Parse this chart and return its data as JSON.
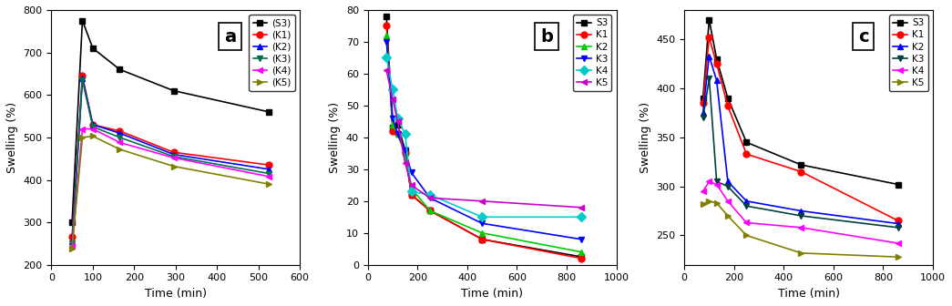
{
  "panel_a": {
    "title": "a",
    "xlabel": "Time (min)",
    "ylabel": "Swelling (%)",
    "xlim": [
      0,
      600
    ],
    "ylim": [
      200,
      800
    ],
    "xticks": [
      0,
      100,
      200,
      300,
      400,
      500,
      600
    ],
    "yticks": [
      200,
      300,
      400,
      500,
      600,
      700,
      800
    ],
    "series": {
      "S3": {
        "x": [
          50,
          75,
          100,
          165,
          295,
          525
        ],
        "y": [
          300,
          775,
          710,
          660,
          610,
          560
        ],
        "color": "#000000",
        "marker": "s",
        "linestyle": "-"
      },
      "K1": {
        "x": [
          50,
          75,
          100,
          165,
          295,
          525
        ],
        "y": [
          265,
          645,
          530,
          515,
          465,
          435
        ],
        "color": "#ff0000",
        "marker": "o",
        "linestyle": "-"
      },
      "K2": {
        "x": [
          50,
          75,
          100,
          165,
          295,
          525
        ],
        "y": [
          255,
          640,
          530,
          510,
          460,
          425
        ],
        "color": "#0000ff",
        "marker": "^",
        "linestyle": "-"
      },
      "K3": {
        "x": [
          50,
          75,
          100,
          165,
          295,
          525
        ],
        "y": [
          250,
          635,
          525,
          500,
          455,
          415
        ],
        "color": "#007050",
        "marker": "v",
        "linestyle": "-"
      },
      "K4": {
        "x": [
          50,
          75,
          100,
          165,
          295,
          525
        ],
        "y": [
          245,
          520,
          520,
          488,
          452,
          408
        ],
        "color": "#ff00ff",
        "marker": "<",
        "linestyle": "-"
      },
      "K5": {
        "x": [
          50,
          75,
          100,
          165,
          295,
          525
        ],
        "y": [
          238,
          500,
          503,
          472,
          432,
          390
        ],
        "color": "#808000",
        "marker": ">",
        "linestyle": "-"
      }
    },
    "legend_labels": [
      "(S3)",
      "(K1)",
      "(K2)",
      "(K3)",
      "(K4)",
      "(K5)"
    ]
  },
  "panel_b": {
    "title": "b",
    "xlabel": "Time (min)",
    "ylabel": "Swelling (%)",
    "xlim": [
      0,
      1000
    ],
    "ylim": [
      0,
      80
    ],
    "xticks": [
      0,
      200,
      400,
      600,
      800,
      1000
    ],
    "yticks": [
      0,
      10,
      20,
      30,
      40,
      50,
      60,
      70,
      80
    ],
    "series": {
      "S3": {
        "x": [
          75,
          100,
          120,
          150,
          175,
          250,
          460,
          860
        ],
        "y": [
          78,
          43,
          44,
          36,
          22,
          17,
          8,
          2.5
        ],
        "color": "#000000",
        "marker": "s",
        "linestyle": "-"
      },
      "K1": {
        "x": [
          75,
          100,
          120,
          150,
          175,
          250,
          460,
          860
        ],
        "y": [
          75,
          42,
          41,
          35,
          22,
          17,
          8,
          2
        ],
        "color": "#ff0000",
        "marker": "o",
        "linestyle": "-"
      },
      "K2": {
        "x": [
          75,
          100,
          120,
          150,
          175,
          250,
          460,
          860
        ],
        "y": [
          72,
          44,
          41,
          35,
          24,
          17,
          10,
          4
        ],
        "color": "#00cc00",
        "marker": "^",
        "linestyle": "-"
      },
      "K3": {
        "x": [
          75,
          100,
          120,
          150,
          175,
          250,
          460,
          860
        ],
        "y": [
          70,
          46,
          41,
          36,
          29,
          21,
          13,
          8
        ],
        "color": "#0000ff",
        "marker": "v",
        "linestyle": "-"
      },
      "K4": {
        "x": [
          75,
          100,
          120,
          150,
          175,
          250,
          460,
          860
        ],
        "y": [
          65,
          55,
          46,
          41,
          23,
          22,
          15,
          15
        ],
        "color": "#00cccc",
        "marker": "D",
        "linestyle": "-"
      },
      "K5": {
        "x": [
          75,
          100,
          120,
          150,
          175,
          250,
          460,
          860
        ],
        "y": [
          61,
          52,
          45,
          32,
          25,
          21,
          20,
          18
        ],
        "color": "#cc00cc",
        "marker": "<",
        "linestyle": "-"
      }
    },
    "legend_labels": [
      "S3",
      "K1",
      "K2",
      "K3",
      "K4",
      "K5"
    ]
  },
  "panel_c": {
    "title": "c",
    "xlabel": "Time (min)",
    "ylabel": "Swelling (%)",
    "xlim": [
      0,
      1000
    ],
    "ylim": [
      220,
      480
    ],
    "xticks": [
      0,
      200,
      400,
      600,
      800,
      1000
    ],
    "yticks": [
      250,
      300,
      350,
      400,
      450
    ],
    "series": {
      "S3": {
        "x": [
          75,
          100,
          130,
          175,
          250,
          470,
          860
        ],
        "y": [
          390,
          470,
          430,
          390,
          345,
          322,
          302
        ],
        "color": "#000000",
        "marker": "s",
        "linestyle": "-"
      },
      "K1": {
        "x": [
          75,
          100,
          130,
          175,
          250,
          470,
          860
        ],
        "y": [
          385,
          452,
          425,
          382,
          333,
          315,
          265
        ],
        "color": "#ff0000",
        "marker": "o",
        "linestyle": "-"
      },
      "K2": {
        "x": [
          75,
          100,
          130,
          175,
          250,
          470,
          860
        ],
        "y": [
          375,
          433,
          408,
          305,
          285,
          275,
          262
        ],
        "color": "#0000ff",
        "marker": "^",
        "linestyle": "-"
      },
      "K3": {
        "x": [
          75,
          100,
          130,
          175,
          250,
          470,
          860
        ],
        "y": [
          370,
          410,
          305,
          300,
          280,
          270,
          258
        ],
        "color": "#004040",
        "marker": "v",
        "linestyle": "-"
      },
      "K4": {
        "x": [
          75,
          100,
          130,
          175,
          250,
          470,
          860
        ],
        "y": [
          295,
          305,
          302,
          285,
          263,
          258,
          242
        ],
        "color": "#ff00ff",
        "marker": "<",
        "linestyle": "-"
      },
      "K5": {
        "x": [
          75,
          100,
          130,
          175,
          250,
          470,
          860
        ],
        "y": [
          282,
          285,
          283,
          270,
          250,
          232,
          228
        ],
        "color": "#808000",
        "marker": ">",
        "linestyle": "-"
      }
    },
    "legend_labels": [
      "S3",
      "K1",
      "K2",
      "K3",
      "K4",
      "K5"
    ]
  }
}
